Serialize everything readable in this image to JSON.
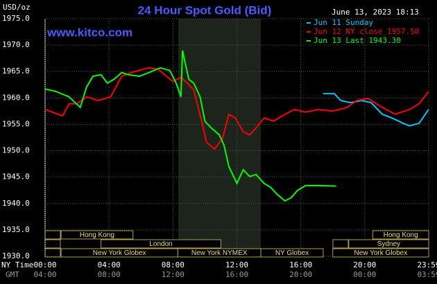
{
  "chart_data": {
    "type": "line",
    "title": "24 Hour Spot Gold (Bid)",
    "y_label": "USD/oz",
    "timestamp": "June 13, 2023 18:13",
    "website": "www.kitco.com",
    "x_label": "NY Time",
    "x2_label": "GMT",
    "xlim": [
      0,
      24
    ],
    "ylim": [
      1930,
      1975
    ],
    "yticks": [
      {
        "value": 1930,
        "label": "1930.0"
      },
      {
        "value": 1935,
        "label": "1935.0"
      },
      {
        "value": 1940,
        "label": "1940.0"
      },
      {
        "value": 1945,
        "label": "1945.0"
      },
      {
        "value": 1950,
        "label": "1950.0"
      },
      {
        "value": 1955,
        "label": "1955.0"
      },
      {
        "value": 1960,
        "label": "1960.0"
      },
      {
        "value": 1965,
        "label": "1965.0"
      },
      {
        "value": 1970,
        "label": "1970.0"
      },
      {
        "value": 1975,
        "label": "1975.0"
      }
    ],
    "xticks": [
      {
        "value": 0,
        "label": "00:00"
      },
      {
        "value": 4,
        "label": "04:00"
      },
      {
        "value": 8,
        "label": "08:00"
      },
      {
        "value": 12,
        "label": "12:00"
      },
      {
        "value": 16,
        "label": "16:00"
      },
      {
        "value": 20,
        "label": "20:00"
      },
      {
        "value": 24,
        "label": "23:59"
      }
    ],
    "x2ticks": [
      {
        "value": 0,
        "label": "04:00"
      },
      {
        "value": 4,
        "label": "08:00"
      },
      {
        "value": 8,
        "label": "12:00"
      },
      {
        "value": 12,
        "label": "16:00"
      },
      {
        "value": 16,
        "label": "20:00"
      },
      {
        "value": 20,
        "label": "00:00"
      },
      {
        "value": 24,
        "label": "03:59"
      }
    ],
    "grid": true,
    "series": [
      {
        "name": "Jun 11 Sunday",
        "color": "#00c8ff",
        "x": [
          17.4,
          18.1,
          18.5,
          19.1,
          19.8,
          20.4,
          21.1,
          21.7,
          22.4,
          22.8,
          23.4,
          24
        ],
        "values": [
          1960.8,
          1960.8,
          1959.5,
          1959.1,
          1959.5,
          1959.1,
          1956.9,
          1956.2,
          1955.2,
          1954.7,
          1955.2,
          1957.8
        ]
      },
      {
        "name": "Jun 12 NY close 1957.50",
        "color": "#ff0000",
        "x": [
          0,
          1.1,
          1.5,
          2.0,
          2.6,
          3.3,
          4.1,
          4.8,
          5.4,
          6.1,
          6.5,
          7.1,
          7.6,
          8.0,
          8.5,
          8.9,
          9.3,
          9.8,
          10.1,
          10.6,
          11.1,
          11.5,
          11.9,
          12.4,
          12.8,
          13.2,
          13.7,
          14.3,
          15.0,
          15.6,
          16.3,
          17.1,
          18.0,
          18.9,
          19.5,
          20.2,
          21.1,
          21.9,
          22.8,
          23.4,
          24
        ],
        "values": [
          1957.8,
          1956.6,
          1958.9,
          1958.9,
          1960.2,
          1959.5,
          1960.2,
          1964.1,
          1964.8,
          1965.4,
          1965.7,
          1965.4,
          1964.1,
          1963.1,
          1963.9,
          1962.8,
          1961.5,
          1955.6,
          1951.6,
          1950.3,
          1952.3,
          1956.9,
          1956.2,
          1953.6,
          1953.0,
          1954.3,
          1956.2,
          1955.6,
          1956.9,
          1957.8,
          1957.3,
          1957.8,
          1957.5,
          1958.2,
          1959.5,
          1959.9,
          1958.2,
          1956.9,
          1957.8,
          1958.9,
          1961.2
        ]
      },
      {
        "name": "Jun 13 Last 1943.30",
        "color": "#00ff00",
        "x": [
          0,
          0.7,
          1.5,
          2.2,
          2.6,
          3.0,
          3.5,
          3.9,
          4.3,
          4.8,
          5.2,
          5.9,
          6.5,
          7.2,
          7.8,
          8.2,
          8.5,
          8.6,
          8.8,
          9.0,
          9.3,
          9.7,
          10.0,
          10.4,
          10.9,
          11.2,
          11.5,
          12.0,
          12.4,
          12.8,
          13.2,
          13.7,
          14.1,
          14.5,
          15.0,
          15.4,
          15.8,
          16.3,
          17.1,
          18.2
        ],
        "values": [
          1961.7,
          1961.2,
          1960.2,
          1958.2,
          1962.1,
          1964.1,
          1964.4,
          1962.8,
          1963.5,
          1964.8,
          1964.4,
          1964.1,
          1964.8,
          1965.7,
          1965.2,
          1962.8,
          1960.2,
          1969.0,
          1966.1,
          1963.5,
          1962.8,
          1960.2,
          1955.6,
          1954.3,
          1953.0,
          1951.0,
          1947.0,
          1943.8,
          1946.4,
          1945.1,
          1945.5,
          1943.8,
          1943.1,
          1941.8,
          1940.5,
          1941.1,
          1942.5,
          1943.4,
          1943.4,
          1943.3
        ]
      }
    ],
    "sessions": [
      {
        "label": "Hong Kong",
        "start": 1,
        "end": 5.5
      },
      {
        "label": "London",
        "start": 3.5,
        "end": 11
      },
      {
        "label": "New York Globex",
        "start": 1,
        "end": 8.3
      },
      {
        "label": "New York NYMEX",
        "start": 8.3,
        "end": 13.5
      },
      {
        "label": "NY Globex",
        "start": 13.5,
        "end": 17.4
      },
      {
        "label": "Hong Kong",
        "start": 20.5,
        "end": 24
      },
      {
        "label": "Sydney",
        "start": 19,
        "end": 24
      },
      {
        "label": "New York Globex",
        "start": 18,
        "end": 24
      }
    ]
  }
}
